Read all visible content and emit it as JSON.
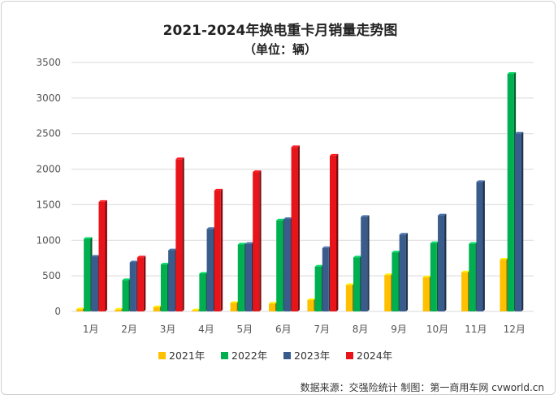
{
  "chart_data": {
    "type": "bar",
    "title": "2021-2024年换电重卡月销量走势图",
    "subtitle": "（单位：辆）",
    "categories": [
      "1月",
      "2月",
      "3月",
      "4月",
      "5月",
      "6月",
      "7月",
      "8月",
      "9月",
      "10月",
      "11月",
      "12月"
    ],
    "series": [
      {
        "name": "2021年",
        "color": "#ffc000",
        "values": [
          30,
          25,
          60,
          15,
          120,
          110,
          160,
          370,
          510,
          480,
          550,
          730
        ]
      },
      {
        "name": "2022年",
        "color": "#00b050",
        "values": [
          1020,
          440,
          660,
          530,
          940,
          1280,
          630,
          760,
          830,
          960,
          950,
          3340
        ]
      },
      {
        "name": "2023年",
        "color": "#3a5c8c",
        "values": [
          770,
          690,
          860,
          1160,
          950,
          1300,
          890,
          1330,
          1080,
          1350,
          1820,
          2500
        ]
      },
      {
        "name": "2024年",
        "color": "#e8141a",
        "values": [
          1540,
          760,
          2140,
          1700,
          1960,
          2310,
          2190,
          null,
          null,
          null,
          null,
          null
        ]
      }
    ],
    "yticks": [
      0,
      500,
      1000,
      1500,
      2000,
      2500,
      3000,
      3500
    ],
    "ylim": [
      0,
      3500
    ],
    "grid": true,
    "legend_position": "bottom",
    "source_note": "数据来源：交强险统计  制图：第一商用车网 cvworld.cn"
  }
}
